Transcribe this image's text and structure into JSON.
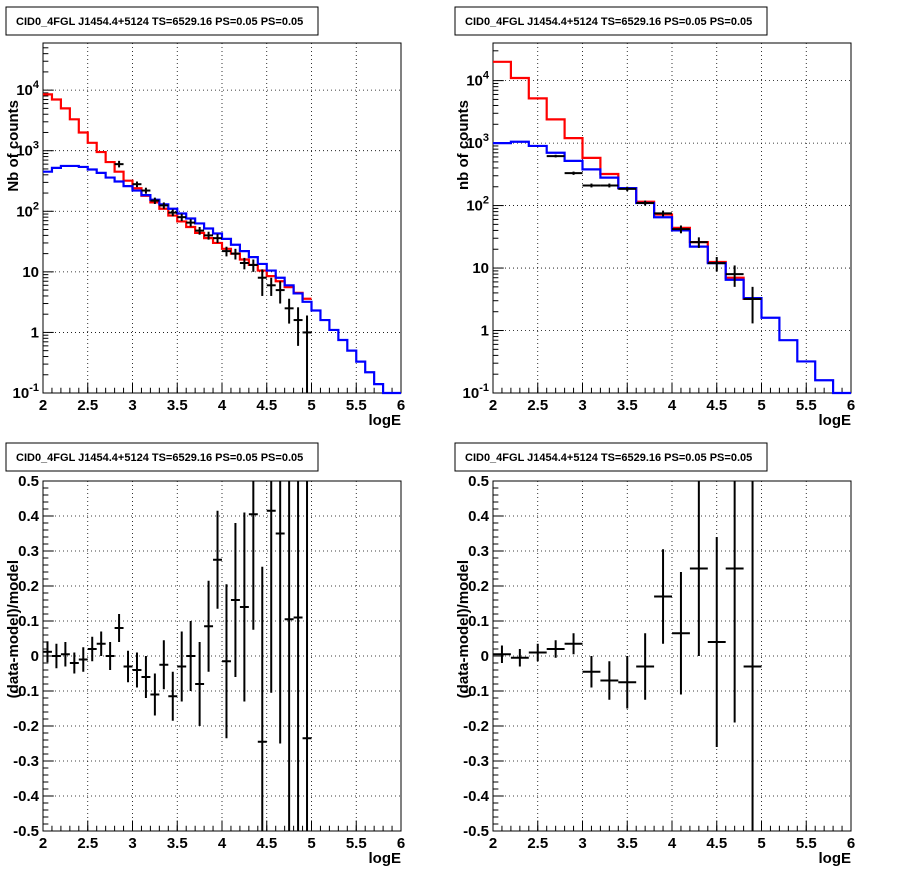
{
  "chart_data": [
    {
      "type": "step",
      "title": "CID0_4FGL J1454.4+5124 TS=6529.16 PS=0.05 PS=0.05",
      "xlabel": "logE",
      "ylabel": "Nb of counts",
      "xlim": [
        2,
        6
      ],
      "ylim": [
        0.1,
        60000
      ],
      "yscale": "log",
      "xticks": [
        "2",
        "2.5",
        "3",
        "3.5",
        "4",
        "4.5",
        "5",
        "5.5",
        "6"
      ],
      "yticks": [
        "10^-1",
        "1",
        "10",
        "10^2",
        "10^3",
        "10^4"
      ],
      "grid": true,
      "series": [
        {
          "color": "#ff0000",
          "style": "step",
          "edges": [
            2.0,
            2.1,
            2.2,
            2.3,
            2.4,
            2.5,
            2.6,
            2.7,
            2.8,
            2.9,
            3.0,
            3.1,
            3.2,
            3.3,
            3.4,
            3.5,
            3.6,
            3.7,
            3.8,
            3.9,
            4.0,
            4.1,
            4.2,
            4.3,
            4.4,
            4.5,
            4.6,
            4.7,
            4.8,
            4.9,
            5.0
          ],
          "values": [
            8500,
            7000,
            5000,
            3300,
            2000,
            1350,
            950,
            650,
            450,
            320,
            240,
            180,
            140,
            110,
            85,
            68,
            55,
            44,
            36,
            30,
            24,
            20,
            16,
            13,
            10.5,
            8.5,
            7,
            5.6,
            4.5,
            3.6
          ]
        },
        {
          "color": "#0000ff",
          "style": "step",
          "edges": [
            2.0,
            2.1,
            2.2,
            2.3,
            2.4,
            2.5,
            2.6,
            2.7,
            2.8,
            2.9,
            3.0,
            3.1,
            3.2,
            3.3,
            3.4,
            3.5,
            3.6,
            3.7,
            3.8,
            3.9,
            4.0,
            4.1,
            4.2,
            4.3,
            4.4,
            4.5,
            4.6,
            4.7,
            4.8,
            4.9,
            5.0,
            5.1,
            5.2,
            5.3,
            5.4,
            5.5,
            5.6,
            5.7,
            5.8,
            5.9,
            6.0
          ],
          "values": [
            450,
            520,
            560,
            560,
            540,
            490,
            430,
            360,
            310,
            260,
            220,
            185,
            155,
            130,
            110,
            92,
            76,
            63,
            52,
            43,
            35,
            28,
            22,
            17.5,
            13.5,
            10.5,
            8,
            6,
            4.4,
            3.2,
            2.3,
            1.6,
            1.1,
            0.75,
            0.5,
            0.33,
            0.22,
            0.14,
            0.1,
            0.1
          ]
        },
        {
          "color": "#000000",
          "style": "points",
          "x": [
            2.85,
            3.05,
            3.15,
            3.25,
            3.35,
            3.45,
            3.55,
            3.65,
            3.75,
            3.85,
            3.95,
            4.05,
            4.15,
            4.25,
            4.35,
            4.45,
            4.55,
            4.65,
            4.75,
            4.85,
            4.95
          ],
          "xerr": 0.05,
          "y": [
            600,
            280,
            220,
            150,
            125,
            95,
            80,
            65,
            48,
            40,
            36,
            22,
            20,
            14,
            13,
            8,
            6,
            5,
            2.5,
            1.6,
            1.0
          ],
          "ylow": [
            530,
            250,
            195,
            132,
            110,
            83,
            69,
            56,
            41,
            34,
            30,
            18,
            16,
            11,
            10,
            4,
            4,
            3,
            1.4,
            0.6,
            0.1
          ],
          "yhigh": [
            680,
            310,
            245,
            168,
            140,
            107,
            91,
            74,
            55,
            46,
            42,
            26,
            24,
            17,
            16,
            11,
            8,
            7,
            3.6,
            2.6,
            1.9
          ]
        }
      ]
    },
    {
      "type": "step",
      "title": "CID0_4FGL J1454.4+5124 TS=6529.16 PS=0.05 PS=0.05",
      "xlabel": "logE",
      "ylabel": "nb of counts",
      "xlim": [
        2,
        6
      ],
      "ylim": [
        0.1,
        40000
      ],
      "yscale": "log",
      "xticks": [
        "2",
        "2.5",
        "3",
        "3.5",
        "4",
        "4.5",
        "5",
        "5.5",
        "6"
      ],
      "yticks": [
        "10^-1",
        "1",
        "10",
        "10^2",
        "10^3",
        "10^4"
      ],
      "grid": true,
      "series": [
        {
          "color": "#ff0000",
          "style": "step",
          "edges": [
            2.0,
            2.2,
            2.4,
            2.6,
            2.8,
            3.0,
            3.2,
            3.4,
            3.6,
            3.8,
            4.0,
            4.2,
            4.4,
            4.6,
            4.8,
            5.0
          ],
          "values": [
            20000,
            11000,
            5200,
            2400,
            1200,
            580,
            320,
            190,
            115,
            72,
            44,
            26,
            12.5,
            7,
            3.2
          ]
        },
        {
          "color": "#0000ff",
          "style": "step",
          "edges": [
            2.0,
            2.2,
            2.4,
            2.6,
            2.8,
            3.0,
            3.2,
            3.4,
            3.6,
            3.8,
            4.0,
            4.2,
            4.4,
            4.6,
            4.8,
            5.0,
            5.2,
            5.4,
            5.6,
            5.8,
            6.0
          ],
          "values": [
            1000,
            1050,
            900,
            700,
            520,
            380,
            280,
            190,
            110,
            65,
            40,
            22,
            12,
            6.5,
            3.3,
            1.6,
            0.7,
            0.32,
            0.16,
            0.1
          ]
        },
        {
          "color": "#000000",
          "style": "points",
          "x": [
            2.7,
            2.9,
            3.1,
            3.3,
            3.5,
            3.7,
            3.9,
            4.1,
            4.3,
            4.5,
            4.7,
            4.9
          ],
          "xerr": 0.1,
          "y": [
            620,
            330,
            210,
            210,
            185,
            110,
            75,
            42,
            26,
            12,
            8,
            3.2
          ],
          "ylow": [
            590,
            310,
            195,
            195,
            170,
            100,
            67,
            36,
            21,
            8.8,
            5,
            1.3
          ],
          "yhigh": [
            650,
            350,
            225,
            225,
            200,
            120,
            83,
            48,
            31,
            15,
            11,
            5
          ]
        }
      ]
    },
    {
      "type": "scatter",
      "title": "CID0_4FGL J1454.4+5124 TS=6529.16 PS=0.05 PS=0.05",
      "xlabel": "logE",
      "ylabel": "(data-model)/model",
      "xlim": [
        2,
        6
      ],
      "ylim": [
        -0.5,
        0.5
      ],
      "xticks": [
        "2",
        "2.5",
        "3",
        "3.5",
        "4",
        "4.5",
        "5",
        "5.5",
        "6"
      ],
      "yticks": [
        "-0.5",
        "-0.4",
        "-0.3",
        "-0.2",
        "-0.1",
        "0",
        "0.1",
        "0.2",
        "0.3",
        "0.4",
        "0.5"
      ],
      "grid": true,
      "series": [
        {
          "color": "#000000",
          "style": "points",
          "x": [
            2.05,
            2.15,
            2.25,
            2.35,
            2.45,
            2.55,
            2.65,
            2.75,
            2.85,
            2.95,
            3.05,
            3.15,
            3.25,
            3.35,
            3.45,
            3.55,
            3.65,
            3.75,
            3.85,
            3.95,
            4.05,
            4.15,
            4.25,
            4.35,
            4.45,
            4.55,
            4.65,
            4.75,
            4.85,
            4.95
          ],
          "xerr": 0.05,
          "y": [
            0.012,
            0.0,
            0.005,
            -0.02,
            -0.01,
            0.02,
            0.035,
            0.0,
            0.08,
            -0.03,
            -0.04,
            -0.06,
            -0.11,
            -0.025,
            -0.115,
            -0.03,
            0.0,
            -0.08,
            0.085,
            0.275,
            -0.015,
            0.16,
            0.14,
            0.405,
            -0.245,
            0.415,
            0.35,
            0.105,
            0.11,
            -0.235
          ],
          "yerr": [
            0.03,
            0.035,
            0.035,
            0.03,
            0.035,
            0.035,
            0.035,
            0.04,
            0.04,
            0.045,
            0.05,
            0.06,
            0.06,
            0.07,
            0.07,
            0.1,
            0.1,
            0.12,
            0.13,
            0.14,
            0.22,
            0.22,
            0.27,
            0.33,
            0.5,
            0.52,
            0.6,
            0.8,
            0.9,
            1.0
          ]
        }
      ]
    },
    {
      "type": "scatter",
      "title": "CID0_4FGL J1454.4+5124 TS=6529.16 PS=0.05 PS=0.05",
      "xlabel": "logE",
      "ylabel": "(data-model)/model",
      "xlim": [
        2,
        6
      ],
      "ylim": [
        -0.5,
        0.5
      ],
      "xticks": [
        "2",
        "2.5",
        "3",
        "3.5",
        "4",
        "4.5",
        "5",
        "5.5",
        "6"
      ],
      "yticks": [
        "-0.5",
        "-0.4",
        "-0.3",
        "-0.2",
        "-0.1",
        "0",
        "0.1",
        "0.2",
        "0.3",
        "0.4",
        "0.5"
      ],
      "grid": true,
      "series": [
        {
          "color": "#000000",
          "style": "points",
          "x": [
            2.1,
            2.3,
            2.5,
            2.7,
            2.9,
            3.1,
            3.3,
            3.5,
            3.7,
            3.9,
            4.1,
            4.3,
            4.5,
            4.7,
            4.9
          ],
          "xerr": 0.1,
          "y": [
            0.005,
            -0.005,
            0.01,
            0.02,
            0.035,
            -0.045,
            -0.07,
            -0.075,
            -0.03,
            0.17,
            0.065,
            0.25,
            0.04,
            0.25,
            -0.03
          ],
          "yerr": [
            0.025,
            0.025,
            0.025,
            0.025,
            0.03,
            0.045,
            0.055,
            0.075,
            0.095,
            0.135,
            0.175,
            0.25,
            0.3,
            0.44,
            0.55
          ]
        }
      ]
    }
  ]
}
